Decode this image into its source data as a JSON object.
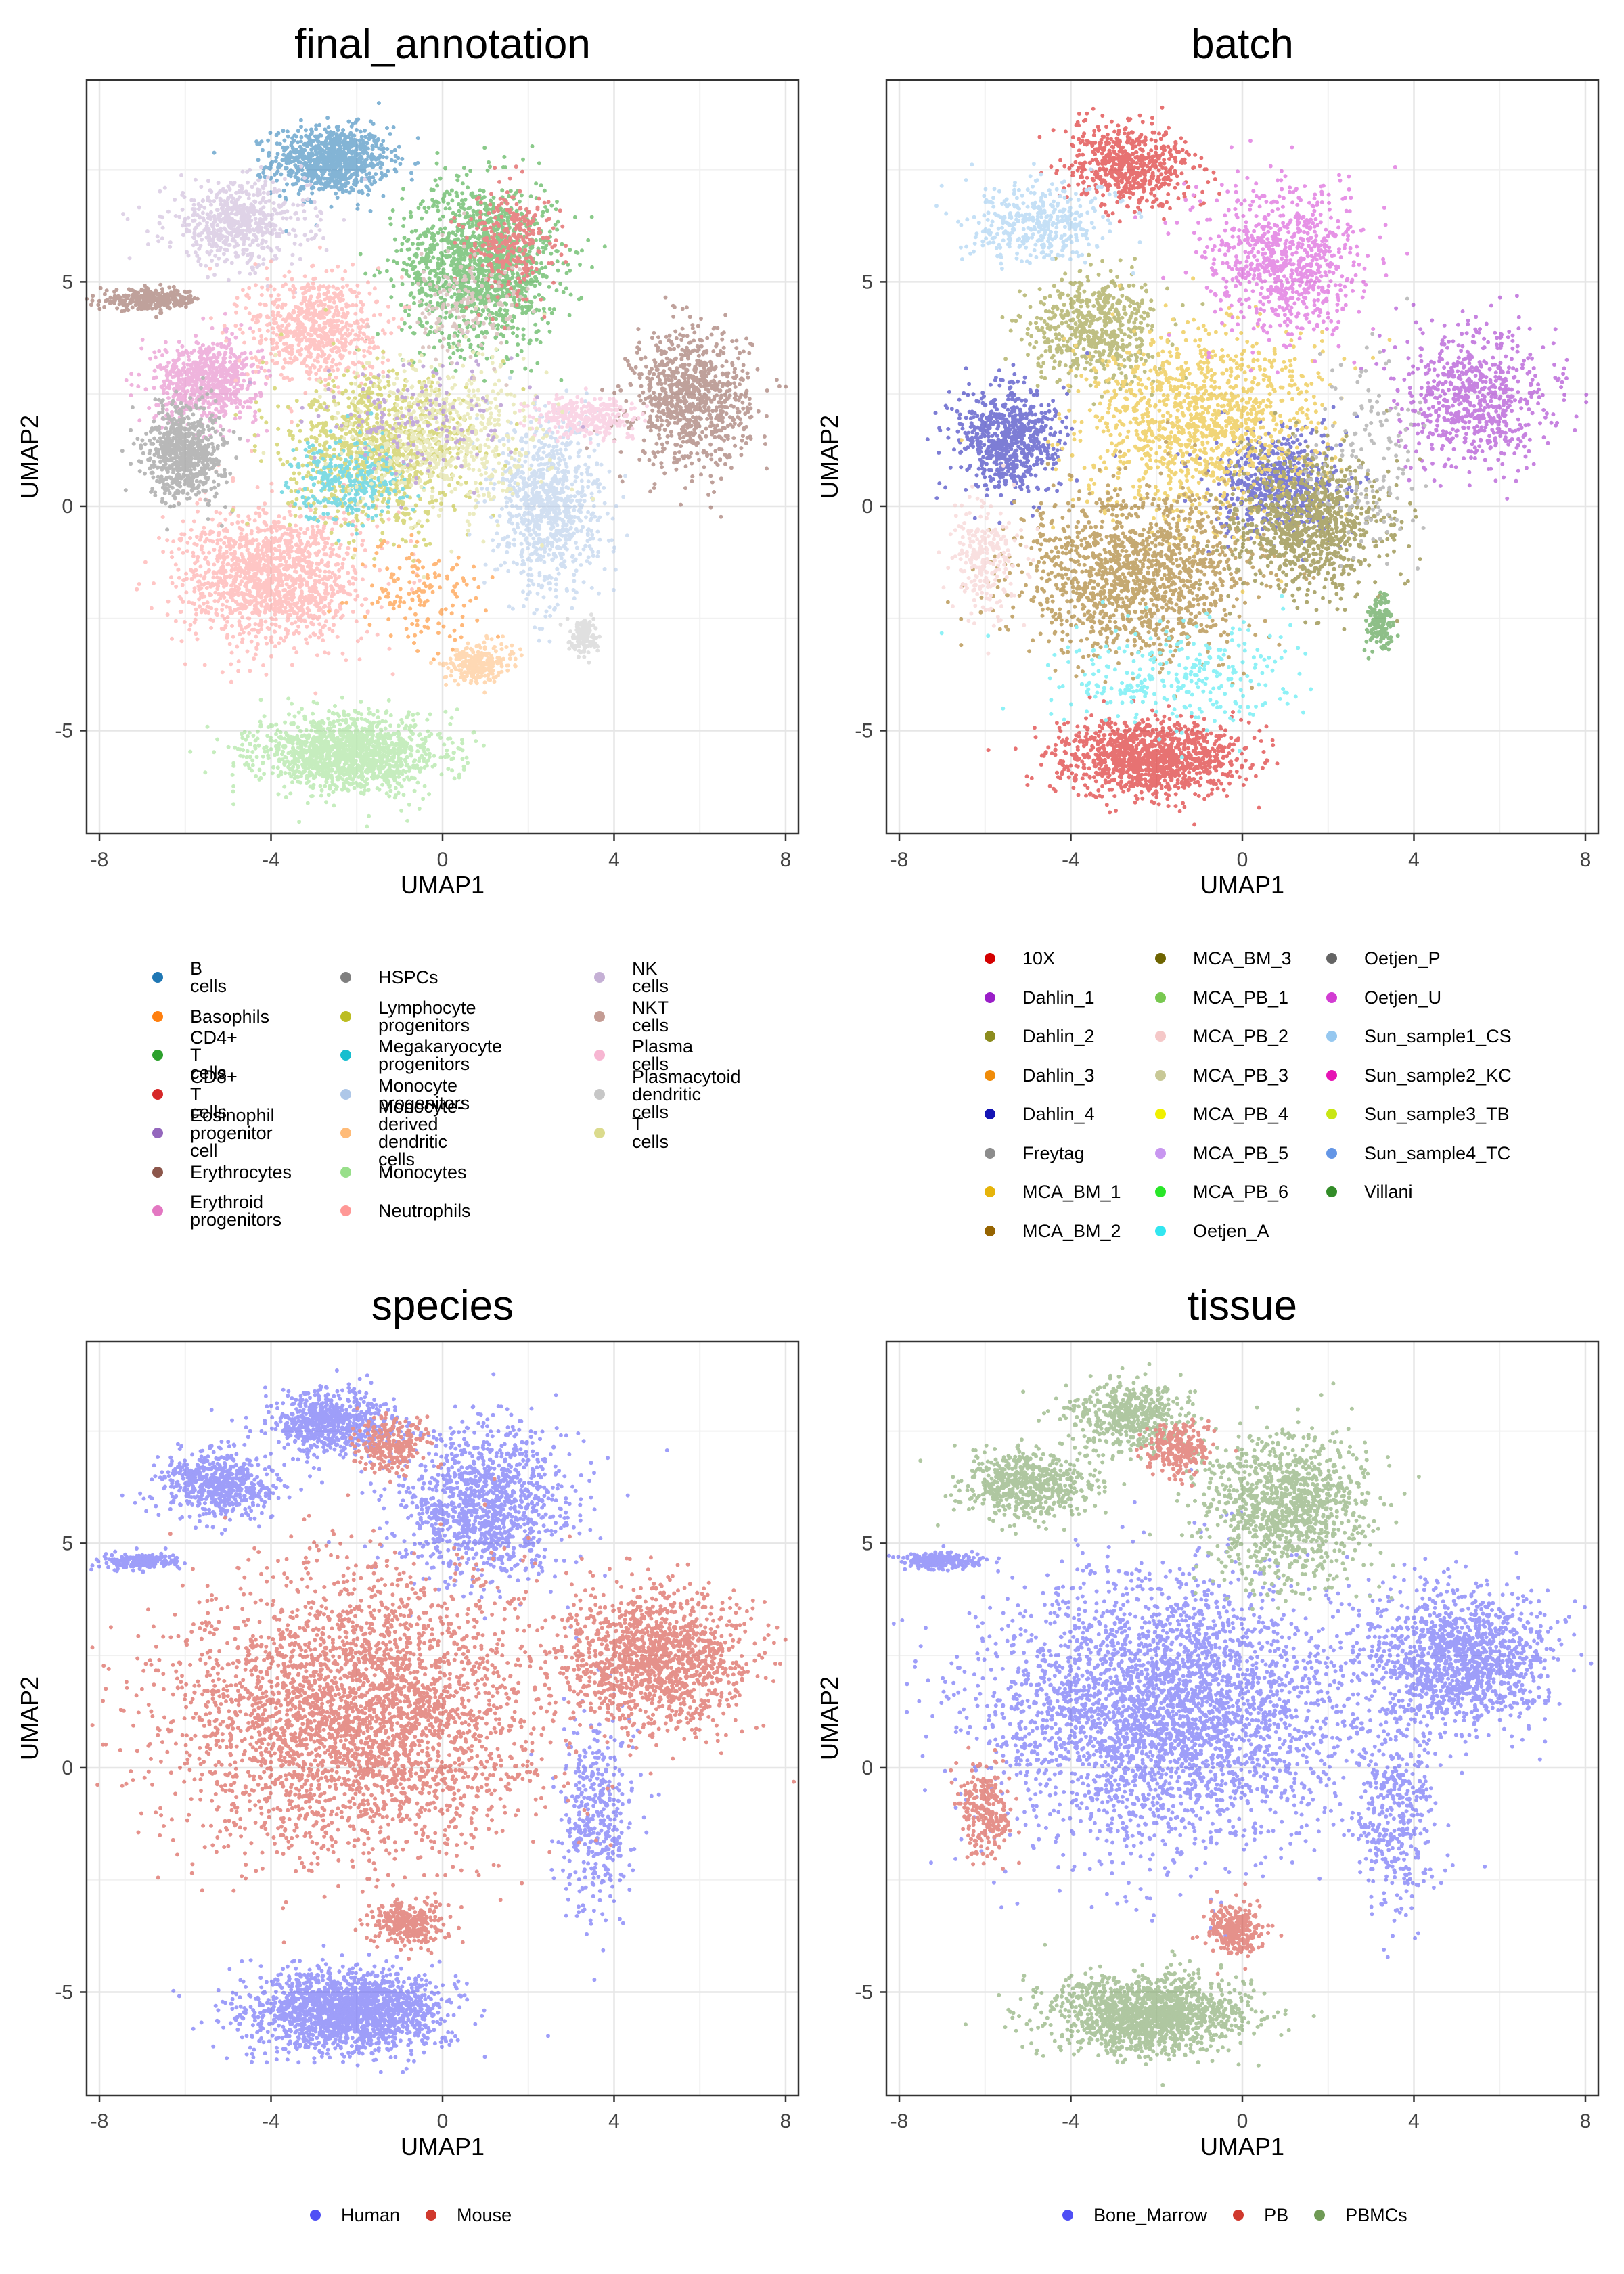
{
  "charts": [
    {
      "title": "final_annotation",
      "xlabel": "UMAP1",
      "ylabel": "UMAP2",
      "xticks": [
        "-8",
        "-4",
        "0",
        "4",
        "8"
      ],
      "yticks": [
        "5",
        "0",
        "-5"
      ]
    },
    {
      "title": "batch",
      "xlabel": "UMAP1",
      "ylabel": "UMAP2",
      "xticks": [
        "-8",
        "-4",
        "0",
        "4",
        "8"
      ],
      "yticks": [
        "5",
        "0",
        "-5"
      ]
    },
    {
      "title": "species",
      "xlabel": "UMAP1",
      "ylabel": "UMAP2",
      "xticks": [
        "-8",
        "-4",
        "0",
        "4",
        "8"
      ],
      "yticks": [
        "5",
        "0",
        "-5"
      ]
    },
    {
      "title": "tissue",
      "xlabel": "UMAP1",
      "ylabel": "UMAP2",
      "xticks": [
        "-8",
        "-4",
        "0",
        "4",
        "8"
      ],
      "yticks": [
        "5",
        "0",
        "-5"
      ]
    }
  ],
  "legends": {
    "final_annotation": [
      {
        "label": "B cells",
        "color": "#1f77b4"
      },
      {
        "label": "Basophils",
        "color": "#ff7f0e"
      },
      {
        "label": "CD4+ T cells",
        "color": "#2ca02c"
      },
      {
        "label": "CD8+ T cells",
        "color": "#d62728"
      },
      {
        "label": "Eosinophil\nprogenitor cell",
        "color": "#9467bd"
      },
      {
        "label": "Erythrocytes",
        "color": "#8c564b"
      },
      {
        "label": "Erythroid\nprogenitors",
        "color": "#e377c2"
      },
      {
        "label": "HSPCs",
        "color": "#7f7f7f"
      },
      {
        "label": "Lymphocyte\nprogenitors",
        "color": "#bcbd22"
      },
      {
        "label": "Megakaryocyte\nprogenitors",
        "color": "#17becf"
      },
      {
        "label": "Monocyte progenitors",
        "color": "#aec7e8"
      },
      {
        "label": "Monocyte-derived\ndendritic cells",
        "color": "#ffbb78"
      },
      {
        "label": "Monocytes",
        "color": "#98df8a"
      },
      {
        "label": "Neutrophils",
        "color": "#ff9896"
      },
      {
        "label": "NK cells",
        "color": "#c5b0d5"
      },
      {
        "label": "NKT cells",
        "color": "#c49c94"
      },
      {
        "label": "Plasma cells",
        "color": "#f7b6d2"
      },
      {
        "label": "Plasmacytoid\ndendritic cells",
        "color": "#c7c7c7"
      },
      {
        "label": "T cells",
        "color": "#dbdb8d"
      }
    ],
    "batch": [
      {
        "label": "10X",
        "color": "#d40000"
      },
      {
        "label": "Dahlin_1",
        "color": "#9a1ec8"
      },
      {
        "label": "Dahlin_2",
        "color": "#8c8c1e"
      },
      {
        "label": "Dahlin_3",
        "color": "#f08c0a"
      },
      {
        "label": "Dahlin_4",
        "color": "#1414b4"
      },
      {
        "label": "Freytag",
        "color": "#8c8c8c"
      },
      {
        "label": "MCA_BM_1",
        "color": "#e6b40a"
      },
      {
        "label": "MCA_BM_2",
        "color": "#966400"
      },
      {
        "label": "MCA_BM_3",
        "color": "#6e6400"
      },
      {
        "label": "MCA_PB_1",
        "color": "#78c850"
      },
      {
        "label": "MCA_PB_2",
        "color": "#f5c8c8"
      },
      {
        "label": "MCA_PB_3",
        "color": "#c8c896"
      },
      {
        "label": "MCA_PB_4",
        "color": "#f0f000"
      },
      {
        "label": "MCA_PB_5",
        "color": "#c896f0"
      },
      {
        "label": "MCA_PB_6",
        "color": "#28e628"
      },
      {
        "label": "Oetjen_A",
        "color": "#32e6f0"
      },
      {
        "label": "Oetjen_P",
        "color": "#646464"
      },
      {
        "label": "Oetjen_U",
        "color": "#d23cd2"
      },
      {
        "label": "Sun_sample1_CS",
        "color": "#96c8f0"
      },
      {
        "label": "Sun_sample2_KC",
        "color": "#e614b4"
      },
      {
        "label": "Sun_sample3_TB",
        "color": "#c8e614"
      },
      {
        "label": "Sun_sample4_TC",
        "color": "#6496e6"
      },
      {
        "label": "Villani",
        "color": "#328c28"
      }
    ],
    "species": [
      {
        "label": "Human",
        "color": "#4f4ff5"
      },
      {
        "label": "Mouse",
        "color": "#d0392d"
      }
    ],
    "tissue": [
      {
        "label": "Bone_Marrow",
        "color": "#4f4ff5"
      },
      {
        "label": "PB",
        "color": "#d0392d"
      },
      {
        "label": "PBMCs",
        "color": "#6f9a55"
      }
    ]
  },
  "chart_data": [
    {
      "type": "scatter",
      "title": "final_annotation",
      "xlabel": "UMAP1",
      "ylabel": "UMAP2",
      "xlim": [
        -8.3,
        8.3
      ],
      "ylim": [
        -7.3,
        9.5
      ],
      "grid": true,
      "legend_position": "bottom",
      "clusters": [
        {
          "label": "B cells",
          "x": -2.6,
          "y": 7.7,
          "sx": 0.9,
          "sy": 0.5,
          "n": 900
        },
        {
          "label": "CD4+ T cells",
          "x": 0.9,
          "y": 5.4,
          "sx": 1.2,
          "sy": 1.2,
          "n": 1400
        },
        {
          "label": "NK cells",
          "x": -4.8,
          "y": 6.3,
          "sx": 1.1,
          "sy": 0.6,
          "n": 600
        },
        {
          "label": "Erythrocytes",
          "x": -6.8,
          "y": 4.6,
          "sx": 0.8,
          "sy": 0.15,
          "n": 300
        },
        {
          "label": "Erythrocytes",
          "x": 5.8,
          "y": 2.4,
          "sx": 0.9,
          "sy": 1.0,
          "n": 900
        },
        {
          "label": "Erythroid progenitors",
          "x": -5.5,
          "y": 2.8,
          "sx": 0.8,
          "sy": 0.6,
          "n": 700
        },
        {
          "label": "Neutrophils",
          "x": -3.0,
          "y": 4.0,
          "sx": 1.0,
          "sy": 0.8,
          "n": 700
        },
        {
          "label": "Neutrophils",
          "x": -4.0,
          "y": -1.6,
          "sx": 1.4,
          "sy": 1.0,
          "n": 1400
        },
        {
          "label": "HSPCs",
          "x": -6.0,
          "y": 1.2,
          "sx": 0.6,
          "sy": 0.7,
          "n": 700
        },
        {
          "label": "Lymphocyte progenitors",
          "x": -1.5,
          "y": 1.2,
          "sx": 1.4,
          "sy": 1.1,
          "n": 1000
        },
        {
          "label": "Megakaryocyte progenitors",
          "x": -2.2,
          "y": 0.6,
          "sx": 0.9,
          "sy": 0.6,
          "n": 300
        },
        {
          "label": "Monocyte progenitors",
          "x": 2.5,
          "y": 0.0,
          "sx": 0.8,
          "sy": 1.3,
          "n": 900
        },
        {
          "label": "Monocytes",
          "x": -2.2,
          "y": -5.5,
          "sx": 1.4,
          "sy": 0.55,
          "n": 1400
        },
        {
          "label": "Monocyte-derived dendritic cells",
          "x": 0.8,
          "y": -3.5,
          "sx": 0.5,
          "sy": 0.3,
          "n": 250
        },
        {
          "label": "Plasma cells",
          "x": 3.4,
          "y": 2.0,
          "sx": 0.8,
          "sy": 0.3,
          "n": 300
        },
        {
          "label": "Plasmacytoid dendritic cells",
          "x": 3.3,
          "y": -2.9,
          "sx": 0.2,
          "sy": 0.25,
          "n": 150
        },
        {
          "label": "T cells",
          "x": 0.0,
          "y": 1.5,
          "sx": 1.5,
          "sy": 1.2,
          "n": 600
        },
        {
          "label": "CD8+ T cells",
          "x": 1.6,
          "y": 5.8,
          "sx": 0.7,
          "sy": 0.8,
          "n": 300
        },
        {
          "label": "Eosinophil progenitor cell",
          "x": -0.5,
          "y": 2.0,
          "sx": 1.5,
          "sy": 1.0,
          "n": 150
        },
        {
          "label": "Basophils",
          "x": -0.5,
          "y": -2.0,
          "sx": 1.0,
          "sy": 0.8,
          "n": 150
        },
        {
          "label": "NKT cells",
          "x": 0.5,
          "y": 4.5,
          "sx": 1.0,
          "sy": 0.8,
          "n": 150
        }
      ]
    },
    {
      "type": "scatter",
      "title": "batch",
      "xlabel": "UMAP1",
      "ylabel": "UMAP2",
      "xlim": [
        -8.3,
        8.3
      ],
      "ylim": [
        -7.3,
        9.5
      ],
      "grid": true,
      "legend_position": "bottom",
      "clusters": [
        {
          "label": "10X",
          "x": -2.6,
          "y": 7.6,
          "sx": 1.0,
          "sy": 0.6,
          "n": 600
        },
        {
          "label": "10X",
          "x": -2.2,
          "y": -5.6,
          "sx": 1.4,
          "sy": 0.55,
          "n": 1200
        },
        {
          "label": "Dahlin_1",
          "x": 5.5,
          "y": 2.4,
          "sx": 1.2,
          "sy": 1.0,
          "n": 700
        },
        {
          "label": "Dahlin_2",
          "x": -3.5,
          "y": 4.0,
          "sx": 1.0,
          "sy": 0.8,
          "n": 600
        },
        {
          "label": "Dahlin_4",
          "x": -5.5,
          "y": 1.5,
          "sx": 0.8,
          "sy": 0.8,
          "n": 700
        },
        {
          "label": "Dahlin_4",
          "x": 0.8,
          "y": 0.5,
          "sx": 1.0,
          "sy": 0.8,
          "n": 600
        },
        {
          "label": "MCA_BM_1",
          "x": -1.0,
          "y": 1.8,
          "sx": 1.8,
          "sy": 1.4,
          "n": 1200
        },
        {
          "label": "MCA_BM_2",
          "x": -2.5,
          "y": -1.5,
          "sx": 1.8,
          "sy": 1.2,
          "n": 1400
        },
        {
          "label": "MCA_BM_3",
          "x": 1.6,
          "y": -0.4,
          "sx": 1.2,
          "sy": 1.0,
          "n": 900
        },
        {
          "label": "Oetjen_U",
          "x": 1.0,
          "y": 5.5,
          "sx": 1.2,
          "sy": 1.1,
          "n": 800
        },
        {
          "label": "Sun_sample1_CS",
          "x": -4.8,
          "y": 6.3,
          "sx": 1.1,
          "sy": 0.6,
          "n": 400
        },
        {
          "label": "Oetjen_A",
          "x": -1.5,
          "y": -3.8,
          "sx": 2.0,
          "sy": 0.8,
          "n": 300
        },
        {
          "label": "Villani",
          "x": 3.2,
          "y": -2.6,
          "sx": 0.2,
          "sy": 0.4,
          "n": 150
        },
        {
          "label": "MCA_PB_2",
          "x": -6.0,
          "y": -1.2,
          "sx": 0.5,
          "sy": 0.8,
          "n": 250
        },
        {
          "label": "Freytag",
          "x": 3.0,
          "y": 1.0,
          "sx": 0.8,
          "sy": 1.5,
          "n": 150
        }
      ]
    },
    {
      "type": "scatter",
      "title": "species",
      "xlabel": "UMAP1",
      "ylabel": "UMAP2",
      "xlim": [
        -8.3,
        8.3
      ],
      "ylim": [
        -7.3,
        9.5
      ],
      "grid": true,
      "legend_position": "bottom",
      "clusters": [
        {
          "label": "Human",
          "x": -2.6,
          "y": 7.7,
          "sx": 0.9,
          "sy": 0.5,
          "n": 700
        },
        {
          "label": "Human",
          "x": 1.0,
          "y": 5.8,
          "sx": 1.3,
          "sy": 1.1,
          "n": 1200
        },
        {
          "label": "Human",
          "x": -5.2,
          "y": 6.3,
          "sx": 0.9,
          "sy": 0.5,
          "n": 600
        },
        {
          "label": "Human",
          "x": -7.0,
          "y": 4.6,
          "sx": 0.6,
          "sy": 0.12,
          "n": 200
        },
        {
          "label": "Human",
          "x": -2.2,
          "y": -5.4,
          "sx": 1.5,
          "sy": 0.6,
          "n": 1800
        },
        {
          "label": "Human",
          "x": 3.6,
          "y": -1.0,
          "sx": 0.6,
          "sy": 1.5,
          "n": 400
        },
        {
          "label": "Mouse",
          "x": -2.0,
          "y": 1.2,
          "sx": 2.8,
          "sy": 2.0,
          "n": 3500
        },
        {
          "label": "Mouse",
          "x": 5.0,
          "y": 2.4,
          "sx": 1.4,
          "sy": 1.0,
          "n": 1400
        },
        {
          "label": "Mouse",
          "x": -1.2,
          "y": 7.2,
          "sx": 0.5,
          "sy": 0.4,
          "n": 250
        },
        {
          "label": "Mouse",
          "x": -0.8,
          "y": -3.5,
          "sx": 0.6,
          "sy": 0.3,
          "n": 300
        }
      ]
    },
    {
      "type": "scatter",
      "title": "tissue",
      "xlabel": "UMAP1",
      "ylabel": "UMAP2",
      "xlim": [
        -8.3,
        8.3
      ],
      "ylim": [
        -7.3,
        9.5
      ],
      "grid": true,
      "legend_position": "bottom",
      "clusters": [
        {
          "label": "Bone_Marrow",
          "x": -1.8,
          "y": 1.2,
          "sx": 2.8,
          "sy": 2.0,
          "n": 3500
        },
        {
          "label": "Bone_Marrow",
          "x": 5.0,
          "y": 2.4,
          "sx": 1.4,
          "sy": 1.0,
          "n": 1400
        },
        {
          "label": "Bone_Marrow",
          "x": -7.0,
          "y": 4.6,
          "sx": 0.6,
          "sy": 0.12,
          "n": 200
        },
        {
          "label": "Bone_Marrow",
          "x": 3.6,
          "y": -1.0,
          "sx": 0.6,
          "sy": 1.5,
          "n": 400
        },
        {
          "label": "PBMCs",
          "x": -2.6,
          "y": 7.8,
          "sx": 0.9,
          "sy": 0.5,
          "n": 500
        },
        {
          "label": "PBMCs",
          "x": 1.0,
          "y": 5.8,
          "sx": 1.3,
          "sy": 1.1,
          "n": 1100
        },
        {
          "label": "PBMCs",
          "x": -5.0,
          "y": 6.3,
          "sx": 1.0,
          "sy": 0.5,
          "n": 600
        },
        {
          "label": "PBMCs",
          "x": -2.2,
          "y": -5.5,
          "sx": 1.5,
          "sy": 0.55,
          "n": 1500
        },
        {
          "label": "PB",
          "x": -1.5,
          "y": 7.1,
          "sx": 0.5,
          "sy": 0.4,
          "n": 250
        },
        {
          "label": "PB",
          "x": -0.2,
          "y": -3.6,
          "sx": 0.4,
          "sy": 0.4,
          "n": 300
        },
        {
          "label": "PB",
          "x": -6.0,
          "y": -1.0,
          "sx": 0.4,
          "sy": 0.7,
          "n": 250
        }
      ]
    }
  ]
}
